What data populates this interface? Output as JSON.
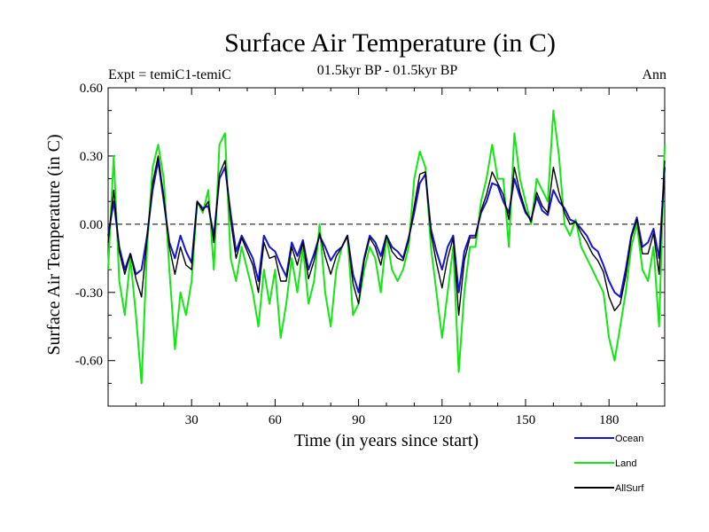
{
  "chart_data": {
    "type": "line",
    "title": "Surface Air Temperature (in C)",
    "subtitle_left": "Expt = temiC1-temiC",
    "subtitle_center": "01.5kyr BP - 01.5kyr BP",
    "subtitle_right": "Ann",
    "xlabel": "Time (in years since start)",
    "ylabel": "Surface Air Temperature (in C)",
    "xlim": [
      0,
      200
    ],
    "ylim": [
      -0.8,
      0.6
    ],
    "xticks": [
      30,
      60,
      90,
      120,
      150,
      180
    ],
    "xtick_labels": [
      "30",
      "60",
      "90",
      "120",
      "150",
      "180"
    ],
    "yticks": [
      0.6,
      0.3,
      0.0,
      -0.3,
      -0.6
    ],
    "ytick_labels": [
      "0.60",
      "0.30",
      "0.00",
      "-0.30",
      "-0.60"
    ],
    "zero_line": true,
    "x": [
      0,
      2,
      4,
      6,
      8,
      10,
      12,
      14,
      16,
      18,
      20,
      22,
      24,
      26,
      28,
      30,
      32,
      34,
      36,
      38,
      40,
      42,
      44,
      46,
      48,
      50,
      52,
      54,
      56,
      58,
      60,
      62,
      64,
      66,
      68,
      70,
      72,
      74,
      76,
      78,
      80,
      82,
      84,
      86,
      88,
      90,
      92,
      94,
      96,
      98,
      100,
      102,
      104,
      106,
      108,
      110,
      112,
      114,
      116,
      118,
      120,
      122,
      124,
      126,
      128,
      130,
      132,
      134,
      136,
      138,
      140,
      142,
      144,
      146,
      148,
      150,
      152,
      154,
      156,
      158,
      160,
      162,
      164,
      166,
      168,
      170,
      172,
      174,
      176,
      178,
      180,
      182,
      184,
      186,
      188,
      190,
      192,
      194,
      196,
      198,
      200
    ],
    "series": [
      {
        "name": "Ocean",
        "color": "#1414d2",
        "values": [
          -0.05,
          0.1,
          -0.1,
          -0.2,
          -0.13,
          -0.22,
          -0.2,
          -0.05,
          0.15,
          0.28,
          0.1,
          -0.08,
          -0.15,
          -0.05,
          -0.12,
          -0.17,
          0.1,
          0.07,
          0.08,
          -0.05,
          0.2,
          0.25,
          0.05,
          -0.12,
          -0.05,
          -0.1,
          -0.15,
          -0.25,
          -0.05,
          -0.1,
          -0.12,
          -0.18,
          -0.23,
          -0.08,
          -0.14,
          -0.07,
          -0.2,
          -0.13,
          -0.05,
          -0.1,
          -0.16,
          -0.12,
          -0.1,
          -0.05,
          -0.22,
          -0.3,
          -0.15,
          -0.05,
          -0.08,
          -0.14,
          -0.05,
          -0.1,
          -0.12,
          -0.15,
          -0.06,
          0.05,
          0.18,
          0.22,
          -0.02,
          -0.12,
          -0.2,
          -0.1,
          -0.05,
          -0.3,
          -0.12,
          -0.05,
          -0.05,
          0.05,
          0.1,
          0.18,
          0.17,
          0.1,
          0.05,
          0.2,
          0.12,
          0.05,
          0.02,
          0.12,
          0.06,
          0.04,
          0.15,
          0.1,
          0.07,
          0.02,
          0.01,
          -0.02,
          -0.05,
          -0.1,
          -0.12,
          -0.18,
          -0.25,
          -0.3,
          -0.32,
          -0.2,
          -0.05,
          0.03,
          -0.1,
          -0.08,
          -0.02,
          -0.15,
          0.25
        ]
      },
      {
        "name": "Land",
        "color": "#14e614",
        "values": [
          -0.2,
          0.3,
          -0.25,
          -0.4,
          -0.15,
          -0.4,
          -0.7,
          -0.1,
          0.25,
          0.35,
          0.2,
          -0.2,
          -0.55,
          -0.3,
          -0.4,
          -0.25,
          0.1,
          0.05,
          0.15,
          -0.2,
          0.35,
          0.4,
          -0.15,
          -0.25,
          -0.1,
          -0.2,
          -0.3,
          -0.45,
          -0.2,
          -0.35,
          -0.2,
          -0.5,
          -0.35,
          -0.15,
          -0.3,
          -0.1,
          -0.35,
          -0.25,
          0.0,
          -0.3,
          -0.45,
          -0.2,
          -0.1,
          -0.05,
          -0.4,
          -0.35,
          -0.2,
          -0.1,
          -0.15,
          -0.3,
          -0.05,
          -0.2,
          -0.25,
          -0.2,
          -0.1,
          0.2,
          0.32,
          0.25,
          -0.1,
          -0.3,
          -0.5,
          -0.3,
          -0.1,
          -0.65,
          -0.3,
          -0.1,
          -0.1,
          0.1,
          0.2,
          0.35,
          0.2,
          0.2,
          -0.1,
          0.4,
          0.2,
          0.1,
          0.0,
          0.2,
          0.15,
          0.1,
          0.5,
          0.3,
          0.0,
          -0.05,
          0.02,
          -0.1,
          -0.15,
          -0.2,
          -0.25,
          -0.3,
          -0.5,
          -0.6,
          -0.45,
          -0.3,
          -0.1,
          0.0,
          -0.2,
          -0.25,
          -0.1,
          -0.45,
          0.35
        ]
      },
      {
        "name": "AllSurf",
        "color": "#000000",
        "values": [
          -0.08,
          0.15,
          -0.12,
          -0.22,
          -0.13,
          -0.24,
          -0.32,
          -0.06,
          0.18,
          0.3,
          0.12,
          -0.1,
          -0.22,
          -0.1,
          -0.18,
          -0.2,
          0.1,
          0.06,
          0.1,
          -0.08,
          0.22,
          0.28,
          0.02,
          -0.15,
          -0.06,
          -0.12,
          -0.18,
          -0.3,
          -0.08,
          -0.15,
          -0.14,
          -0.25,
          -0.25,
          -0.1,
          -0.18,
          -0.08,
          -0.24,
          -0.16,
          -0.04,
          -0.14,
          -0.22,
          -0.14,
          -0.1,
          -0.05,
          -0.26,
          -0.35,
          -0.16,
          -0.06,
          -0.1,
          -0.18,
          -0.05,
          -0.12,
          -0.15,
          -0.16,
          -0.07,
          0.08,
          0.22,
          0.23,
          -0.04,
          -0.17,
          -0.28,
          -0.15,
          -0.06,
          -0.4,
          -0.16,
          -0.06,
          -0.06,
          0.06,
          0.13,
          0.23,
          0.18,
          0.13,
          0.02,
          0.25,
          0.14,
          0.06,
          0.01,
          0.14,
          0.08,
          0.05,
          0.25,
          0.14,
          0.05,
          0.0,
          0.01,
          -0.04,
          -0.08,
          -0.13,
          -0.16,
          -0.21,
          -0.32,
          -0.38,
          -0.35,
          -0.23,
          -0.06,
          0.02,
          -0.13,
          -0.13,
          -0.04,
          -0.22,
          0.28
        ]
      }
    ]
  }
}
